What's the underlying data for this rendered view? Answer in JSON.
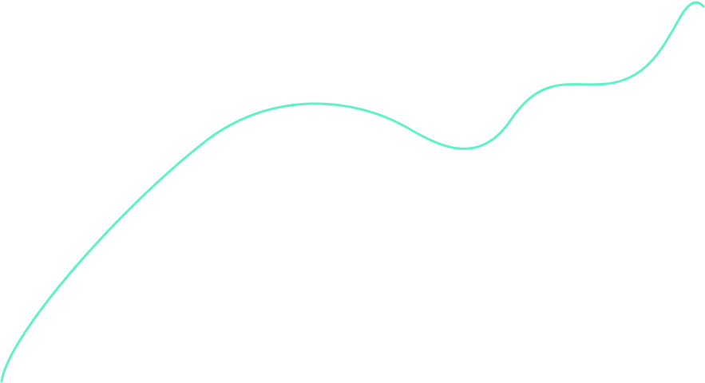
{
  "background_color": "#ffffff",
  "curve": {
    "stroke_color": "#5ef2c6"
  }
}
